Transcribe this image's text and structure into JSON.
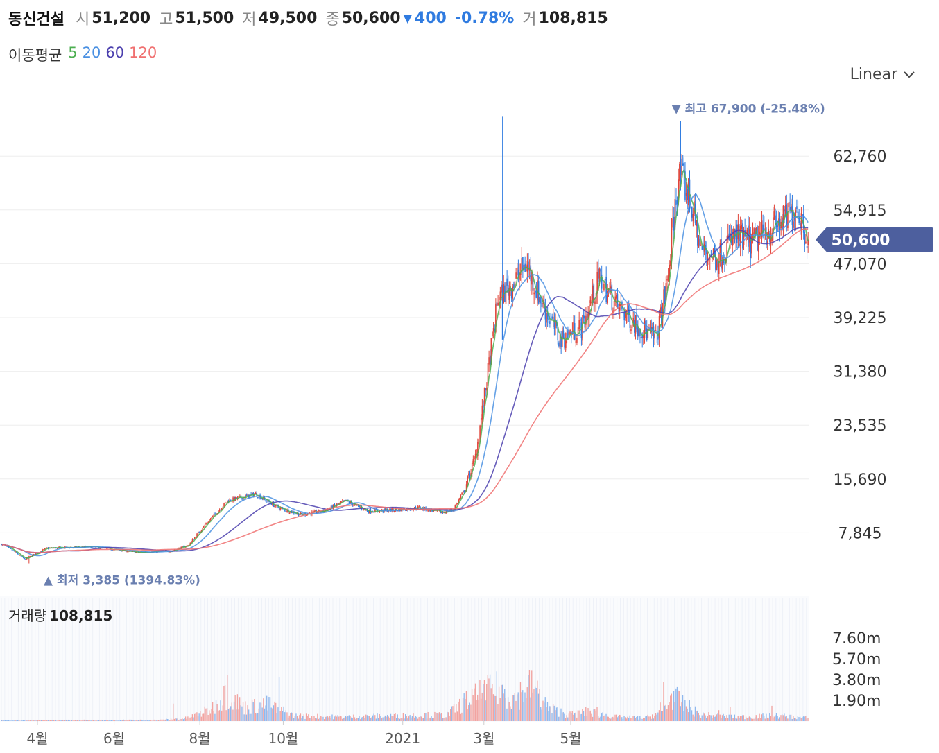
{
  "header": {
    "name": "동신건설",
    "open_label": "시",
    "open": "51,200",
    "high_label": "고",
    "high": "51,500",
    "low_label": "저",
    "low": "49,500",
    "close_label": "종",
    "close": "50,600",
    "change_icon": "triangle-down-icon",
    "change": "400",
    "change_pct": "-0.78%",
    "volume_label": "거",
    "volume": "108,815"
  },
  "ma_legend": {
    "title": "이동평균",
    "items": [
      {
        "label": "5",
        "color": "#4caf50"
      },
      {
        "label": "20",
        "color": "#4a90e2"
      },
      {
        "label": "60",
        "color": "#4b3fae"
      },
      {
        "label": "120",
        "color": "#f07070"
      }
    ]
  },
  "scale_selector": {
    "label": "Linear",
    "icon": "chevron-down-icon"
  },
  "colors": {
    "up": "#e0453a",
    "down": "#2f7be0",
    "price_tag": "#4d5f9e",
    "grid": "#eeeeee"
  },
  "chart_data": {
    "type": "candlestick",
    "price_ticks": [
      "62,760",
      "54,915",
      "47,070",
      "39,225",
      "31,380",
      "23,535",
      "15,690",
      "7,845"
    ],
    "price_tick_values": [
      62760,
      54915,
      47070,
      39225,
      31380,
      23535,
      15690,
      7845
    ],
    "x_ticks": [
      "4월",
      "6월",
      "8월",
      "10월",
      "2021",
      "3월",
      "5월"
    ],
    "last_price_label": "50,600",
    "last_price": 50600,
    "high_annotation": {
      "icon": "triangle-down-icon",
      "label": "최고",
      "value": "67,900 (-25.48%)",
      "price": 67900
    },
    "low_annotation": {
      "icon": "triangle-up-icon",
      "label": "최저",
      "value": "3,385 (1394.83%)",
      "price": 3385
    },
    "volume_title": "거래량",
    "volume_value": "108,815",
    "volume_ticks": [
      "7.60m",
      "5.70m",
      "3.80m",
      "1.90m"
    ],
    "volume_tick_values": [
      7600000,
      5700000,
      3800000,
      1900000
    ],
    "price_anchors": [
      [
        0,
        6200
      ],
      [
        12,
        5000
      ],
      [
        20,
        4000
      ],
      [
        40,
        5600
      ],
      [
        80,
        5800
      ],
      [
        120,
        5000
      ],
      [
        150,
        5200
      ],
      [
        165,
        6000
      ],
      [
        180,
        9000
      ],
      [
        200,
        12500
      ],
      [
        225,
        13500
      ],
      [
        245,
        11500
      ],
      [
        265,
        10500
      ],
      [
        285,
        11000
      ],
      [
        305,
        12500
      ],
      [
        325,
        11000
      ],
      [
        350,
        11200
      ],
      [
        370,
        11500
      ],
      [
        390,
        10800
      ],
      [
        400,
        11200
      ],
      [
        410,
        14000
      ],
      [
        420,
        19000
      ],
      [
        430,
        30000
      ],
      [
        440,
        42000
      ],
      [
        452,
        44000
      ],
      [
        465,
        47000
      ],
      [
        480,
        41000
      ],
      [
        495,
        36000
      ],
      [
        515,
        38000
      ],
      [
        530,
        45000
      ],
      [
        545,
        41000
      ],
      [
        565,
        38000
      ],
      [
        580,
        36000
      ],
      [
        590,
        44000
      ],
      [
        600,
        60000
      ],
      [
        610,
        57000
      ],
      [
        620,
        49000
      ],
      [
        635,
        48000
      ],
      [
        650,
        51000
      ],
      [
        665,
        50000
      ],
      [
        680,
        52000
      ],
      [
        695,
        53500
      ],
      [
        705,
        55500
      ],
      [
        715,
        50600
      ]
    ],
    "volume_anchors": [
      [
        0,
        0.08
      ],
      [
        140,
        0.1
      ],
      [
        165,
        0.3
      ],
      [
        185,
        1.1
      ],
      [
        200,
        2.6
      ],
      [
        215,
        1.3
      ],
      [
        235,
        1.6
      ],
      [
        260,
        0.5
      ],
      [
        300,
        0.4
      ],
      [
        395,
        0.6
      ],
      [
        410,
        1.8
      ],
      [
        425,
        2.6
      ],
      [
        440,
        3.1
      ],
      [
        455,
        2.2
      ],
      [
        470,
        3.6
      ],
      [
        485,
        1.2
      ],
      [
        505,
        0.6
      ],
      [
        520,
        0.9
      ],
      [
        545,
        0.4
      ],
      [
        570,
        0.3
      ],
      [
        585,
        0.8
      ],
      [
        595,
        2.4
      ],
      [
        605,
        1.6
      ],
      [
        620,
        0.6
      ],
      [
        650,
        0.4
      ],
      [
        690,
        0.5
      ],
      [
        715,
        0.3
      ]
    ],
    "volume_spikes": [
      [
        152,
        1.6
      ],
      [
        197,
        3.2
      ],
      [
        200,
        4.2
      ],
      [
        238,
        2.2
      ],
      [
        246,
        4.0
      ],
      [
        426,
        2.6
      ],
      [
        432,
        3.9
      ],
      [
        453,
        2.4
      ],
      [
        470,
        4.6
      ],
      [
        466,
        3.1
      ],
      [
        475,
        3.7
      ],
      [
        478,
        1.3
      ],
      [
        520,
        1.2
      ],
      [
        528,
        1.3
      ],
      [
        584,
        1.7
      ],
      [
        587,
        3.6
      ],
      [
        594,
        2.5
      ],
      [
        636,
        1.0
      ],
      [
        646,
        1.3
      ],
      [
        683,
        1.4
      ]
    ],
    "ma_periods": [
      5,
      20,
      60,
      120
    ]
  }
}
